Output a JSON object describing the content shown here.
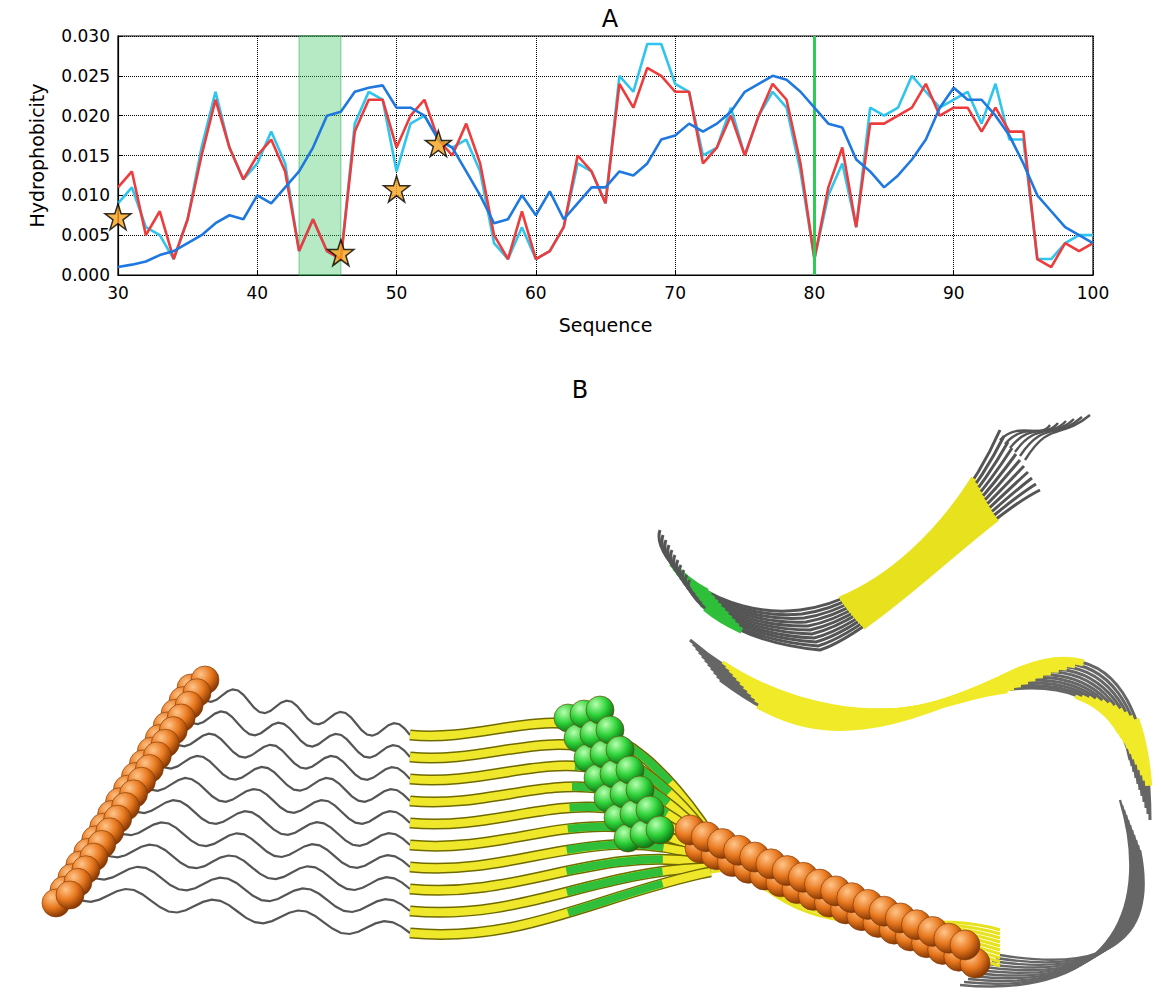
{
  "chart_data": {
    "type": "line",
    "title": "A",
    "x_label": "Sequence",
    "y_label": "Hydrophobicity",
    "x": [
      30,
      31,
      32,
      33,
      34,
      35,
      36,
      37,
      38,
      39,
      40,
      41,
      42,
      43,
      44,
      45,
      46,
      47,
      48,
      49,
      50,
      51,
      52,
      53,
      54,
      55,
      56,
      57,
      58,
      59,
      60,
      61,
      62,
      63,
      64,
      65,
      66,
      67,
      68,
      69,
      70,
      71,
      72,
      73,
      74,
      75,
      76,
      77,
      78,
      79,
      80,
      81,
      82,
      83,
      84,
      85,
      86,
      87,
      88,
      89,
      90,
      91,
      92,
      93,
      94,
      95,
      96,
      97,
      98,
      99,
      100
    ],
    "xlim": [
      30,
      100
    ],
    "xticks": [
      30,
      40,
      50,
      60,
      70,
      80,
      90,
      100
    ],
    "ylim": [
      0,
      0.03
    ],
    "yticks": [
      {
        "value": 0,
        "label": "0.000"
      },
      {
        "value": 0.005,
        "label": "0.005"
      },
      {
        "value": 0.01,
        "label": "0.010"
      },
      {
        "value": 0.015,
        "label": "0.015"
      },
      {
        "value": 0.02,
        "label": "0.020"
      },
      {
        "value": 0.025,
        "label": "0.025"
      },
      {
        "value": 0.03,
        "label": "0.030"
      }
    ],
    "grid": true,
    "highlights": [
      {
        "from": 43,
        "to": 46
      },
      {
        "from": 80,
        "to": 80
      }
    ],
    "series": [
      {
        "color": "#2fc5ee",
        "values": [
          0.009,
          0.011,
          0.006,
          0.005,
          0.002,
          0.007,
          0.016,
          0.023,
          0.016,
          0.012,
          0.014,
          0.018,
          0.014,
          0.003,
          0.007,
          0.003,
          0.002,
          0.019,
          0.023,
          0.022,
          0.013,
          0.019,
          0.02,
          0.017,
          0.016,
          0.017,
          0.013,
          0.004,
          0.002,
          0.006,
          0.002,
          0.003,
          0.006,
          0.014,
          0.013,
          0.009,
          0.025,
          0.023,
          0.029,
          0.029,
          0.024,
          0.023,
          0.015,
          0.016,
          0.021,
          0.015,
          0.02,
          0.023,
          0.021,
          0.013,
          0.002,
          0.01,
          0.014,
          0.006,
          0.021,
          0.02,
          0.021,
          0.025,
          0.023,
          0.021,
          0.022,
          0.023,
          0.019,
          0.024,
          0.017,
          0.017,
          0.002,
          0.002,
          0.004,
          0.005,
          0.005
        ]
      },
      {
        "color": "#ee3b3b",
        "values": [
          0.011,
          0.013,
          0.005,
          0.008,
          0.002,
          0.007,
          0.015,
          0.022,
          0.016,
          0.012,
          0.015,
          0.017,
          0.013,
          0.003,
          0.007,
          0.003,
          0.002,
          0.018,
          0.022,
          0.022,
          0.016,
          0.02,
          0.022,
          0.017,
          0.015,
          0.019,
          0.014,
          0.005,
          0.002,
          0.008,
          0.002,
          0.003,
          0.006,
          0.015,
          0.013,
          0.009,
          0.024,
          0.021,
          0.026,
          0.025,
          0.023,
          0.023,
          0.014,
          0.016,
          0.02,
          0.015,
          0.02,
          0.024,
          0.022,
          0.014,
          0.002,
          0.011,
          0.016,
          0.006,
          0.019,
          0.019,
          0.02,
          0.021,
          0.024,
          0.02,
          0.021,
          0.021,
          0.018,
          0.021,
          0.018,
          0.018,
          0.002,
          0.001,
          0.004,
          0.003,
          0.004
        ]
      },
      {
        "color": "#1f78e0",
        "values": [
          0.001,
          0.0013,
          0.0017,
          0.0025,
          0.003,
          0.004,
          0.005,
          0.0065,
          0.0075,
          0.007,
          0.01,
          0.009,
          0.011,
          0.013,
          0.016,
          0.02,
          0.0205,
          0.023,
          0.0235,
          0.0238,
          0.021,
          0.021,
          0.02,
          0.017,
          0.016,
          0.013,
          0.01,
          0.0065,
          0.007,
          0.01,
          0.0075,
          0.0105,
          0.007,
          0.009,
          0.011,
          0.011,
          0.013,
          0.0125,
          0.014,
          0.017,
          0.0175,
          0.019,
          0.018,
          0.019,
          0.0205,
          0.023,
          0.024,
          0.025,
          0.0245,
          0.023,
          0.021,
          0.019,
          0.0185,
          0.0145,
          0.013,
          0.011,
          0.0125,
          0.0145,
          0.017,
          0.021,
          0.0235,
          0.022,
          0.022,
          0.02,
          0.0175,
          0.014,
          0.01,
          0.008,
          0.006,
          0.005,
          0.004
        ]
      },
      {
        "type": "scatter",
        "marker": "star",
        "color": "#f7a21b",
        "x": [
          30,
          46,
          50,
          53
        ],
        "values": [
          0.0073,
          0.0028,
          0.0108,
          0.0165
        ]
      }
    ]
  },
  "diagram": {
    "title": "B"
  }
}
